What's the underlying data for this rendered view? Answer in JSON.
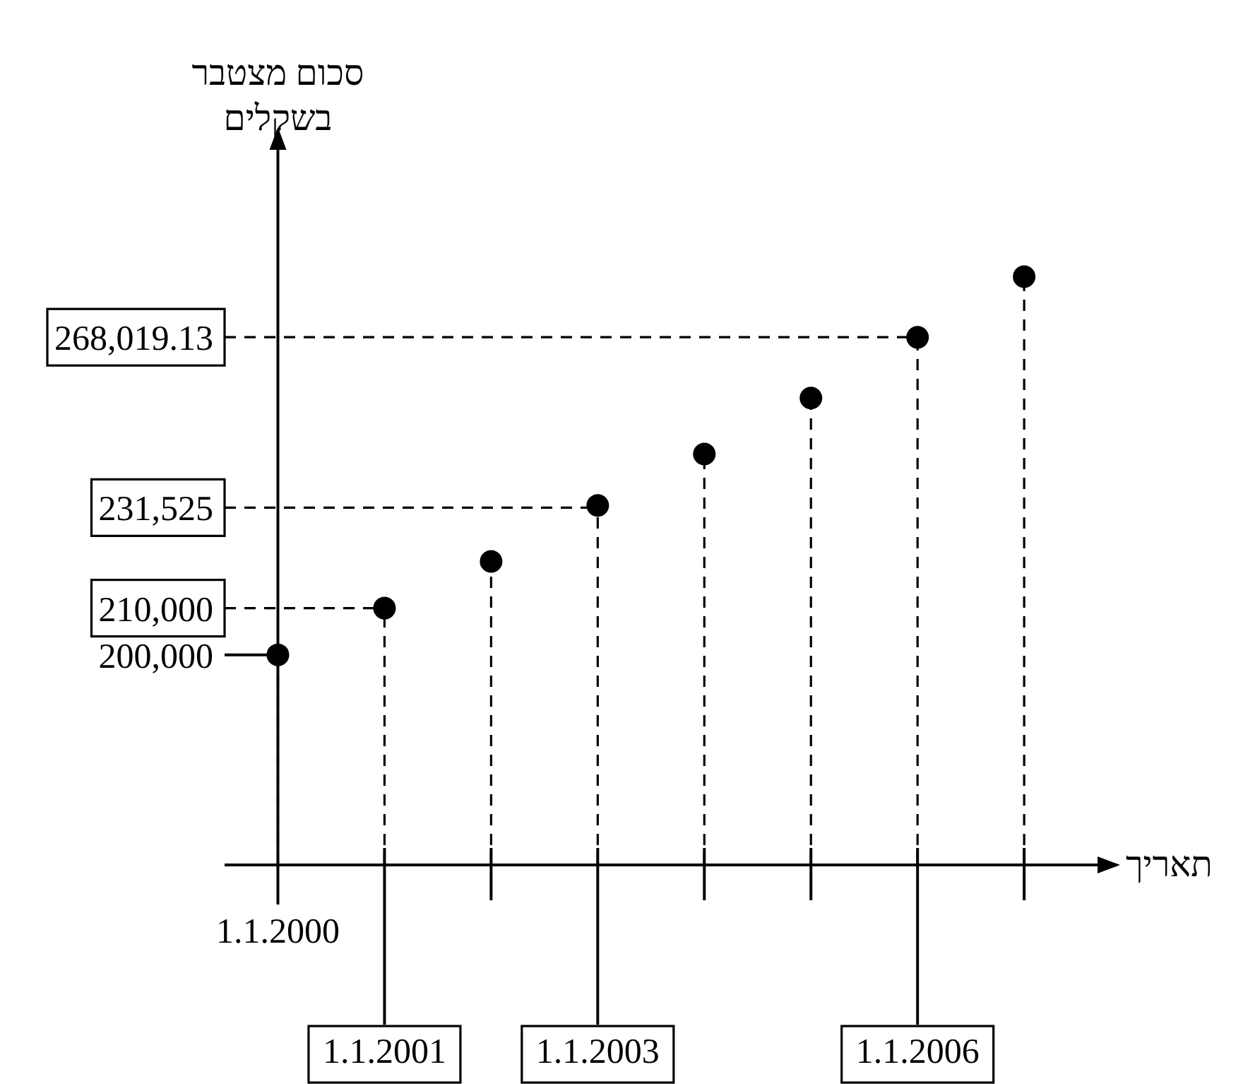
{
  "chart_data": {
    "type": "lollipop",
    "xlabel": "תאריך",
    "ylabel": "סכום מצטבר בשקלים",
    "categories": [
      "1.1.2000",
      "1.1.2001",
      null,
      "1.1.2003",
      null,
      null,
      "1.1.2006",
      null
    ],
    "values": [
      200000,
      210000,
      220000,
      232000,
      243000,
      255000,
      268000,
      281000
    ],
    "color": "#000000",
    "marker": "circle",
    "line_style": "dashed",
    "ylim": [
      155000,
      313000
    ],
    "yticks": [
      {
        "value": 200000,
        "label": "200,000"
      },
      {
        "value": 210000,
        "label": "210,000"
      },
      {
        "value": 231525,
        "label": "231,525"
      },
      {
        "value": 268019.13,
        "label": "268,019.13"
      }
    ],
    "ref_lines": [
      {
        "axis": "y",
        "value": 210000,
        "line_style": "dashed"
      },
      {
        "axis": "y",
        "value": 231525,
        "line_style": "dashed"
      },
      {
        "axis": "y",
        "value": 268019.13,
        "line_style": "dashed"
      }
    ]
  }
}
